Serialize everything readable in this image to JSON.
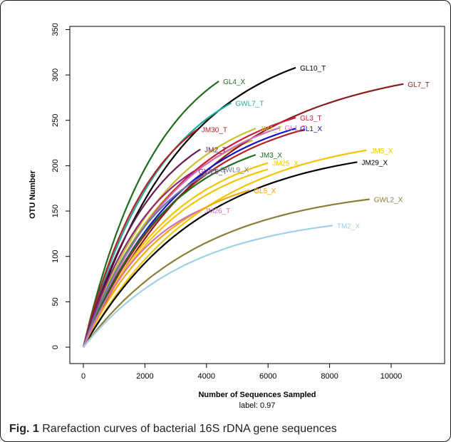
{
  "caption": {
    "label": "Fig. 1",
    "text": "Rarefaction curves of bacterial 16S rDNA gene sequences"
  },
  "chart_data": {
    "type": "line",
    "title": "",
    "xlabel": "Number of Sequences Sampled",
    "xsublabel": "label: 0.97",
    "ylabel": "OTU Number",
    "xlim": [
      0,
      11500
    ],
    "ylim": [
      0,
      350
    ],
    "xticks": [
      0,
      2000,
      4000,
      6000,
      8000,
      10000
    ],
    "yticks": [
      0,
      50,
      100,
      150,
      200,
      250,
      300,
      350
    ],
    "grid": false,
    "series": [
      {
        "name": "GL4_X",
        "color": "#1f6b1f",
        "end_x": 4400,
        "end_y": 293
      },
      {
        "name": "GL10_T",
        "color": "#000000",
        "end_x": 6900,
        "end_y": 308
      },
      {
        "name": "GWL7_T",
        "color": "#22aaa0",
        "end_x": 4800,
        "end_y": 269
      },
      {
        "name": "GL7_T",
        "color": "#8b1a1a",
        "end_x": 10400,
        "end_y": 290
      },
      {
        "name": "GL3_T",
        "color": "#c8203a",
        "end_x": 6900,
        "end_y": 253
      },
      {
        "name": "JM30_T",
        "color": "#b22222",
        "end_x": 3700,
        "end_y": 240
      },
      {
        "name": "JM1_T",
        "color": "#c9c030",
        "end_x": 5600,
        "end_y": 241
      },
      {
        "name": "GL1_T",
        "color": "#d070c0",
        "end_x": 6400,
        "end_y": 242
      },
      {
        "name": "GL1_X",
        "color": "#1010cc",
        "end_x": 6900,
        "end_y": 241
      },
      {
        "name": "JM2_T",
        "color": "#6a1a4a",
        "end_x": 3800,
        "end_y": 218
      },
      {
        "name": "JM3_X",
        "color": "#1f6b1f",
        "end_x": 5600,
        "end_y": 212
      },
      {
        "name": "JM5_X",
        "color": "#f5c400",
        "end_x": 9200,
        "end_y": 217
      },
      {
        "name": "JM25_X",
        "color": "#f5c400",
        "end_x": 6000,
        "end_y": 203
      },
      {
        "name": "JM29_X",
        "color": "#000000",
        "end_x": 8900,
        "end_y": 204
      },
      {
        "name": "GWL5_T",
        "color": "#8b2a7a",
        "end_x": 3600,
        "end_y": 194
      },
      {
        "name": "GWL9_X",
        "color": "#6a7a9a",
        "end_x": 4300,
        "end_y": 196
      },
      {
        "name": "GL5_X",
        "color": "#f5a800",
        "end_x": 5400,
        "end_y": 173
      },
      {
        "name": "GWL2_X",
        "color": "#8b7d3a",
        "end_x": 9300,
        "end_y": 163
      },
      {
        "name": "JM26_T",
        "color": "#d070c0",
        "end_x": 3800,
        "end_y": 151
      },
      {
        "name": "TM2_X",
        "color": "#a0d0e8",
        "end_x": 8100,
        "end_y": 134
      }
    ],
    "extra_curves": [
      {
        "color": "#b22222",
        "end_x": 7200,
        "end_y": 240
      },
      {
        "color": "#c9c030",
        "end_x": 5500,
        "end_y": 228
      },
      {
        "color": "#f5c400",
        "end_x": 6000,
        "end_y": 196
      }
    ]
  }
}
